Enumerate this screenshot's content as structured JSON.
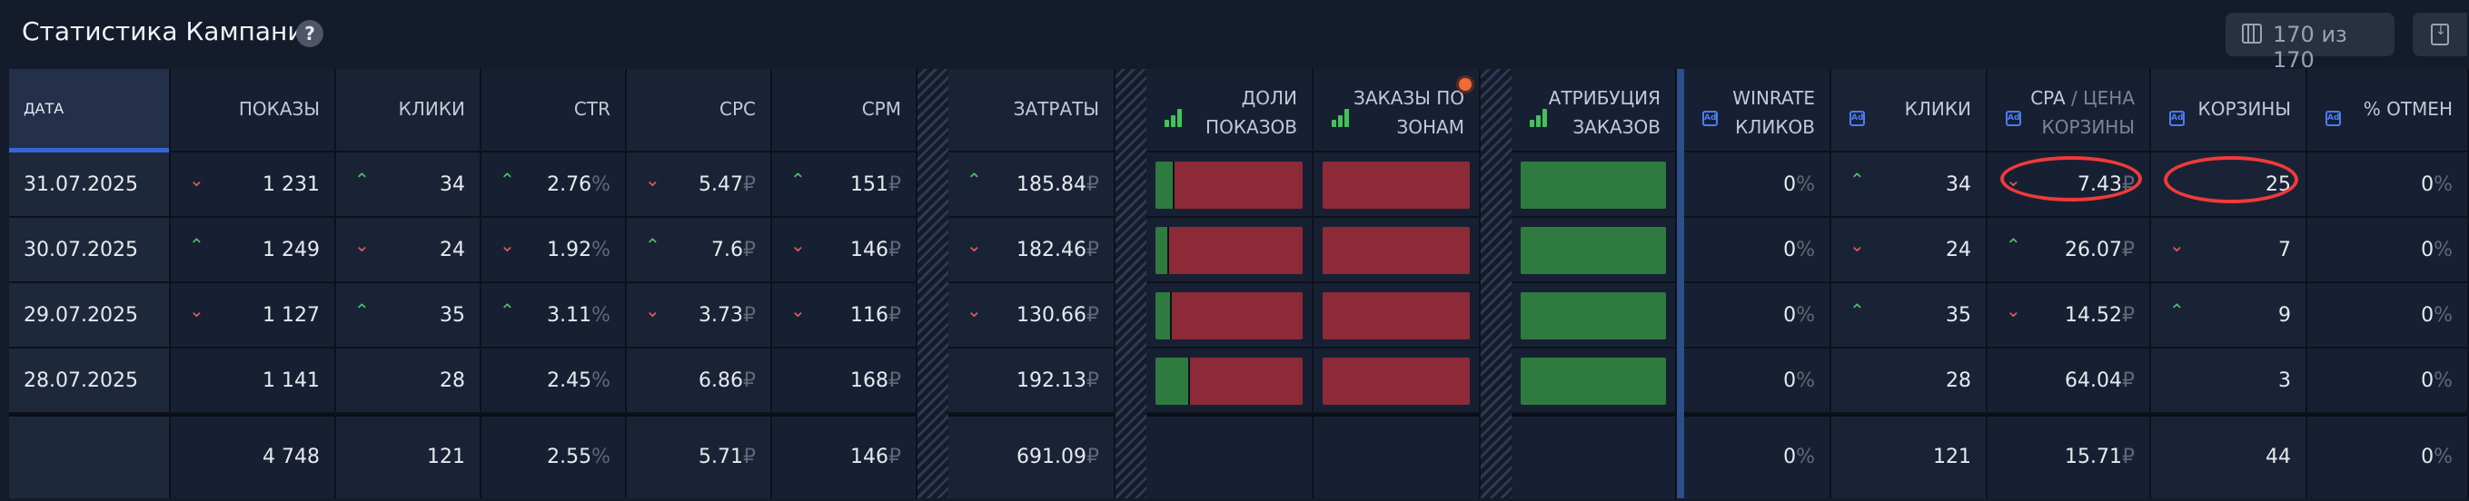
{
  "header": {
    "title": "Статистика Кампании",
    "help_icon": "?",
    "row_count": "170 из 170"
  },
  "columns": {
    "date": "ДАТА",
    "impressions": "ПОКАЗЫ",
    "clicks": "КЛИКИ",
    "ctr": "CTR",
    "cpc": "CPC",
    "cpm": "CPM",
    "spend": "ЗАТРАТЫ",
    "share_line1": "ДОЛИ",
    "share_line2": "ПОКАЗОВ",
    "zones_line1": "ЗАКАЗЫ ПО",
    "zones_line2": "ЗОНАМ",
    "attr_line1": "АТРИБУЦИЯ",
    "attr_line2": "ЗАКАЗОВ",
    "winrate_line1": "WINRATE",
    "winrate_line2": "КЛИКОВ",
    "ad_clicks": "КЛИКИ",
    "cpa_line1": "CPA",
    "cpa_slash": " / ЦЕНА",
    "cpa_line2": "КОРЗИНЫ",
    "carts": "КОРЗИНЫ",
    "cancel": "% ОТМЕН"
  },
  "currency": "₽",
  "percent": "%",
  "icons": {
    "ad_badge": "Ad",
    "help": "help-icon",
    "columns": "columns-icon",
    "download": "download-icon",
    "bars": "signal-bars-icon"
  },
  "rows": [
    {
      "date": "31.07.2025",
      "impressions": "1 231",
      "impressions_trend": "down",
      "clicks": "34",
      "clicks_trend": "up",
      "ctr": "2.76",
      "ctr_trend": "up",
      "cpc": "5.47",
      "cpc_trend": "down",
      "cpm": "151",
      "cpm_trend": "up",
      "spend": "185.84",
      "spend_trend": "up",
      "share_green": 0.12,
      "winrate": "0",
      "ad_clicks": "34",
      "ad_clicks_trend": "up",
      "cpa": "7.43",
      "cpa_trend": "down",
      "carts": "25",
      "carts_trend": "",
      "cancel": "0"
    },
    {
      "date": "30.07.2025",
      "impressions": "1 249",
      "impressions_trend": "up",
      "clicks": "24",
      "clicks_trend": "down",
      "ctr": "1.92",
      "ctr_trend": "down",
      "cpc": "7.6",
      "cpc_trend": "up",
      "cpm": "146",
      "cpm_trend": "down",
      "spend": "182.46",
      "spend_trend": "down",
      "share_green": 0.08,
      "winrate": "0",
      "ad_clicks": "24",
      "ad_clicks_trend": "down",
      "cpa": "26.07",
      "cpa_trend": "up",
      "carts": "7",
      "carts_trend": "down",
      "cancel": "0"
    },
    {
      "date": "29.07.2025",
      "impressions": "1 127",
      "impressions_trend": "down",
      "clicks": "35",
      "clicks_trend": "up",
      "ctr": "3.11",
      "ctr_trend": "up",
      "cpc": "3.73",
      "cpc_trend": "down",
      "cpm": "116",
      "cpm_trend": "down",
      "spend": "130.66",
      "spend_trend": "down",
      "share_green": 0.1,
      "winrate": "0",
      "ad_clicks": "35",
      "ad_clicks_trend": "up",
      "cpa": "14.52",
      "cpa_trend": "down",
      "carts": "9",
      "carts_trend": "up",
      "cancel": "0"
    },
    {
      "date": "28.07.2025",
      "impressions": "1 141",
      "impressions_trend": "",
      "clicks": "28",
      "clicks_trend": "",
      "ctr": "2.45",
      "ctr_trend": "",
      "cpc": "6.86",
      "cpc_trend": "",
      "cpm": "168",
      "cpm_trend": "",
      "spend": "192.13",
      "spend_trend": "",
      "share_green": 0.22,
      "winrate": "0",
      "ad_clicks": "28",
      "ad_clicks_trend": "",
      "cpa": "64.04",
      "cpa_trend": "",
      "carts": "3",
      "carts_trend": "",
      "cancel": "0"
    }
  ],
  "totals": {
    "impressions": "4 748",
    "clicks": "121",
    "ctr": "2.55",
    "cpc": "5.71",
    "cpm": "146",
    "spend": "691.09",
    "winrate": "0",
    "ad_clicks": "121",
    "cpa": "15.71",
    "carts": "44",
    "cancel": "0"
  },
  "colors": {
    "accent": "#3b63d9",
    "up": "#4ec06e",
    "down": "#e25b5b",
    "highlight": "#f03a3a"
  }
}
